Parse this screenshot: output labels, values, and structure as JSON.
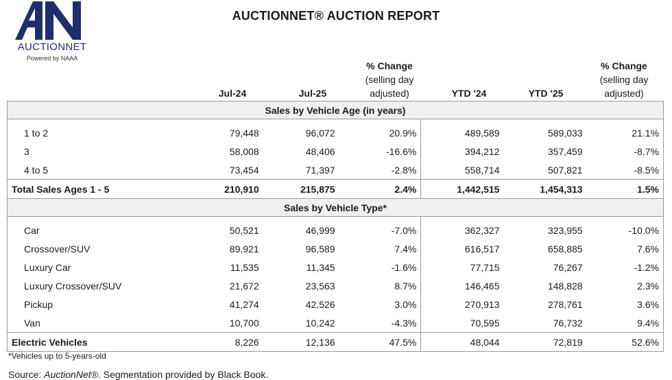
{
  "logo": {
    "wordmark": "AUCTIONNET",
    "tagline": "Powered by NAAA",
    "color": "#1f2f6b"
  },
  "title": "AUCTIONNET® AUCTION REPORT",
  "columns": {
    "jul24": "Jul-24",
    "jul25": "Jul-25",
    "pct_head": "% Change",
    "pct_sub1": "(selling day",
    "pct_sub2": "adjusted)",
    "ytd24": "YTD '24",
    "ytd25": "YTD '25",
    "pct2_head": "% Change",
    "pct2_sub1": "(selling day",
    "pct2_sub2": "adjusted)"
  },
  "sections": {
    "age": "Sales by Vehicle Age (in years)",
    "type": "Sales by Vehicle Type*"
  },
  "age_rows": [
    {
      "label": "1 to 2",
      "jul24": "79,448",
      "jul25": "96,072",
      "pct": "20.9%",
      "ytd24": "489,589",
      "ytd25": "589,033",
      "ytd_pct": "21.1%"
    },
    {
      "label": "3",
      "jul24": "58,008",
      "jul25": "48,406",
      "pct": "-16.6%",
      "ytd24": "394,212",
      "ytd25": "357,459",
      "ytd_pct": "-8.7%"
    },
    {
      "label": "4 to 5",
      "jul24": "73,454",
      "jul25": "71,397",
      "pct": "-2.8%",
      "ytd24": "558,714",
      "ytd25": "507,821",
      "ytd_pct": "-8.5%"
    }
  ],
  "total_row": {
    "label": "Total Sales Ages 1 - 5",
    "jul24": "210,910",
    "jul25": "215,875",
    "pct": "2.4%",
    "ytd24": "1,442,515",
    "ytd25": "1,454,313",
    "ytd_pct": "1.5%"
  },
  "type_rows": [
    {
      "label": "Car",
      "jul24": "50,521",
      "jul25": "46,999",
      "pct": "-7.0%",
      "ytd24": "362,327",
      "ytd25": "323,955",
      "ytd_pct": "-10.0%"
    },
    {
      "label": "Crossover/SUV",
      "jul24": "89,921",
      "jul25": "96,589",
      "pct": "7.4%",
      "ytd24": "616,517",
      "ytd25": "658,885",
      "ytd_pct": "7.6%"
    },
    {
      "label": "Luxury Car",
      "jul24": "11,535",
      "jul25": "11,345",
      "pct": "-1.6%",
      "ytd24": "77,715",
      "ytd25": "76,267",
      "ytd_pct": "-1.2%"
    },
    {
      "label": "Luxury Crossover/SUV",
      "jul24": "21,672",
      "jul25": "23,563",
      "pct": "8.7%",
      "ytd24": "146,465",
      "ytd25": "148,828",
      "ytd_pct": "2.3%"
    },
    {
      "label": "Pickup",
      "jul24": "41,274",
      "jul25": "42,526",
      "pct": "3.0%",
      "ytd24": "270,913",
      "ytd25": "278,761",
      "ytd_pct": "3.6%"
    },
    {
      "label": "Van",
      "jul24": "10,700",
      "jul25": "10,242",
      "pct": "-4.3%",
      "ytd24": "70,595",
      "ytd25": "76,732",
      "ytd_pct": "9.4%"
    }
  ],
  "ev_row": {
    "label": "Electric Vehicles",
    "jul24": "8,226",
    "jul25": "12,136",
    "pct": "47.5%",
    "ytd24": "48,044",
    "ytd25": "72,819",
    "ytd_pct": "52.6%"
  },
  "footnote": "*Vehicles up to 5-years-old",
  "source": {
    "prefix": "Source: ",
    "name": "AuctionNet®",
    "suffix": ". Segmentation provided by Black Book."
  }
}
